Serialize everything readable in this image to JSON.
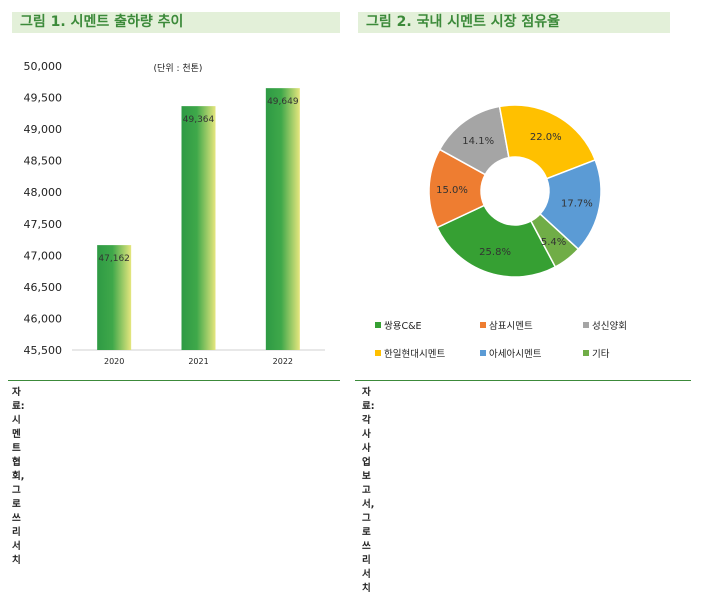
{
  "left": {
    "title": "그림 1. 시멘트 출하량 추이",
    "source": "자료: 시멘트협회, 그로쓰리서치",
    "chart_data": {
      "type": "bar",
      "unit_note": "(단위 : 천톤)",
      "categories": [
        "2020",
        "2021",
        "2022"
      ],
      "values": [
        47162,
        49364,
        49649
      ],
      "value_labels": [
        "47,162",
        "49,364",
        "49,649"
      ],
      "ylim": [
        45500,
        50000
      ],
      "yticks": [
        "45,500",
        "46,000",
        "46,500",
        "47,000",
        "47,500",
        "48,000",
        "48,500",
        "49,000",
        "49,500",
        "50,000"
      ],
      "ytick_values": [
        45500,
        46000,
        46500,
        47000,
        47500,
        48000,
        48500,
        49000,
        49500,
        50000
      ],
      "grid": false,
      "bar_gradient": [
        "#2e9a44",
        "#dfe37a"
      ]
    }
  },
  "right": {
    "title": "그림 2. 국내 시멘트 시장 점유율",
    "source": "자료: 각 사 사업보고서, 그로쓰리서치",
    "chart_data": {
      "type": "pie",
      "donut": true,
      "slices": [
        {
          "name": "쌍용C&E",
          "value": 25.8,
          "label": "25.8%",
          "color": "#36a033"
        },
        {
          "name": "삼표시멘트",
          "value": 15.0,
          "label": "15.0%",
          "color": "#ee7d31"
        },
        {
          "name": "성신양회",
          "value": 14.1,
          "label": "14.1%",
          "color": "#a5a5a5"
        },
        {
          "name": "한일현대시멘트",
          "value": 22.0,
          "label": "22.0%",
          "color": "#ffc000"
        },
        {
          "name": "아세아시멘트",
          "value": 17.7,
          "label": "17.7%",
          "color": "#5b9bd5"
        },
        {
          "name": "기타",
          "value": 5.4,
          "label": "5.4%",
          "color": "#70ad47"
        }
      ],
      "legend_position": "bottom"
    }
  }
}
